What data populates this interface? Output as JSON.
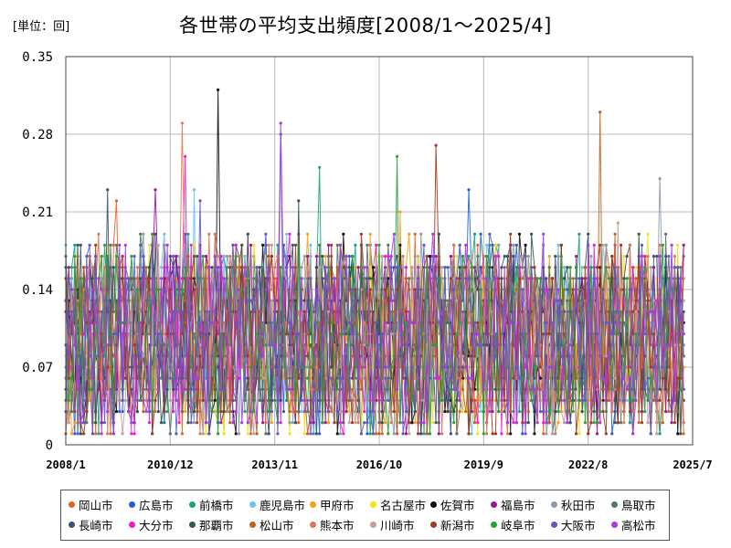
{
  "chart_data": {
    "type": "line",
    "title": "各世帯の平均支出頻度[2008/1～2025/4]",
    "unit_label": "[単位：回]",
    "x_tick_labels": [
      "2008/1",
      "2010/12",
      "2013/11",
      "2016/10",
      "2019/9",
      "2022/8",
      "2025/7"
    ],
    "x_ticks_months_from_start": [
      0,
      35,
      70,
      105,
      140,
      175,
      210
    ],
    "x_range_months": [
      0,
      210
    ],
    "y_tick_labels": [
      "0",
      "0.07",
      "0.14",
      "0.21",
      "0.28",
      "0.35"
    ],
    "ylim": [
      0,
      0.35
    ],
    "grid": true,
    "legend_position": "bottom",
    "series": [
      {
        "name": "岡山市",
        "color": "#e8621f",
        "peak": 0.22
      },
      {
        "name": "広島市",
        "color": "#1f62d6",
        "peak": 0.23
      },
      {
        "name": "前橋市",
        "color": "#1aa37a",
        "peak": 0.25
      },
      {
        "name": "鹿児島市",
        "color": "#6cc4ec",
        "peak": 0.23
      },
      {
        "name": "甲府市",
        "color": "#f2a11a",
        "peak": 0.21
      },
      {
        "name": "名古屋市",
        "color": "#f5e21a",
        "peak": 0.19
      },
      {
        "name": "佐賀市",
        "color": "#111111",
        "peak": 0.32
      },
      {
        "name": "福島市",
        "color": "#a0129b",
        "peak": 0.23
      },
      {
        "name": "秋田市",
        "color": "#8d9aa8",
        "peak": 0.24
      },
      {
        "name": "鳥取市",
        "color": "#557766",
        "peak": 0.28
      },
      {
        "name": "長崎市",
        "color": "#3d4f77",
        "peak": 0.23
      },
      {
        "name": "大分市",
        "color": "#ee1ad6",
        "peak": 0.26
      },
      {
        "name": "那覇市",
        "color": "#2f5a48",
        "peak": 0.22
      },
      {
        "name": "松山市",
        "color": "#c1621a",
        "peak": 0.3
      },
      {
        "name": "熊本市",
        "color": "#dd7a55",
        "peak": 0.29
      },
      {
        "name": "川崎市",
        "color": "#c0a098",
        "peak": 0.2
      },
      {
        "name": "新潟市",
        "color": "#a03a24",
        "peak": 0.27
      },
      {
        "name": "岐阜市",
        "color": "#24a334",
        "peak": 0.26
      },
      {
        "name": "大阪市",
        "color": "#5a5acb",
        "peak": 0.22
      },
      {
        "name": "高松市",
        "color": "#a53ae6",
        "peak": 0.29
      }
    ]
  }
}
